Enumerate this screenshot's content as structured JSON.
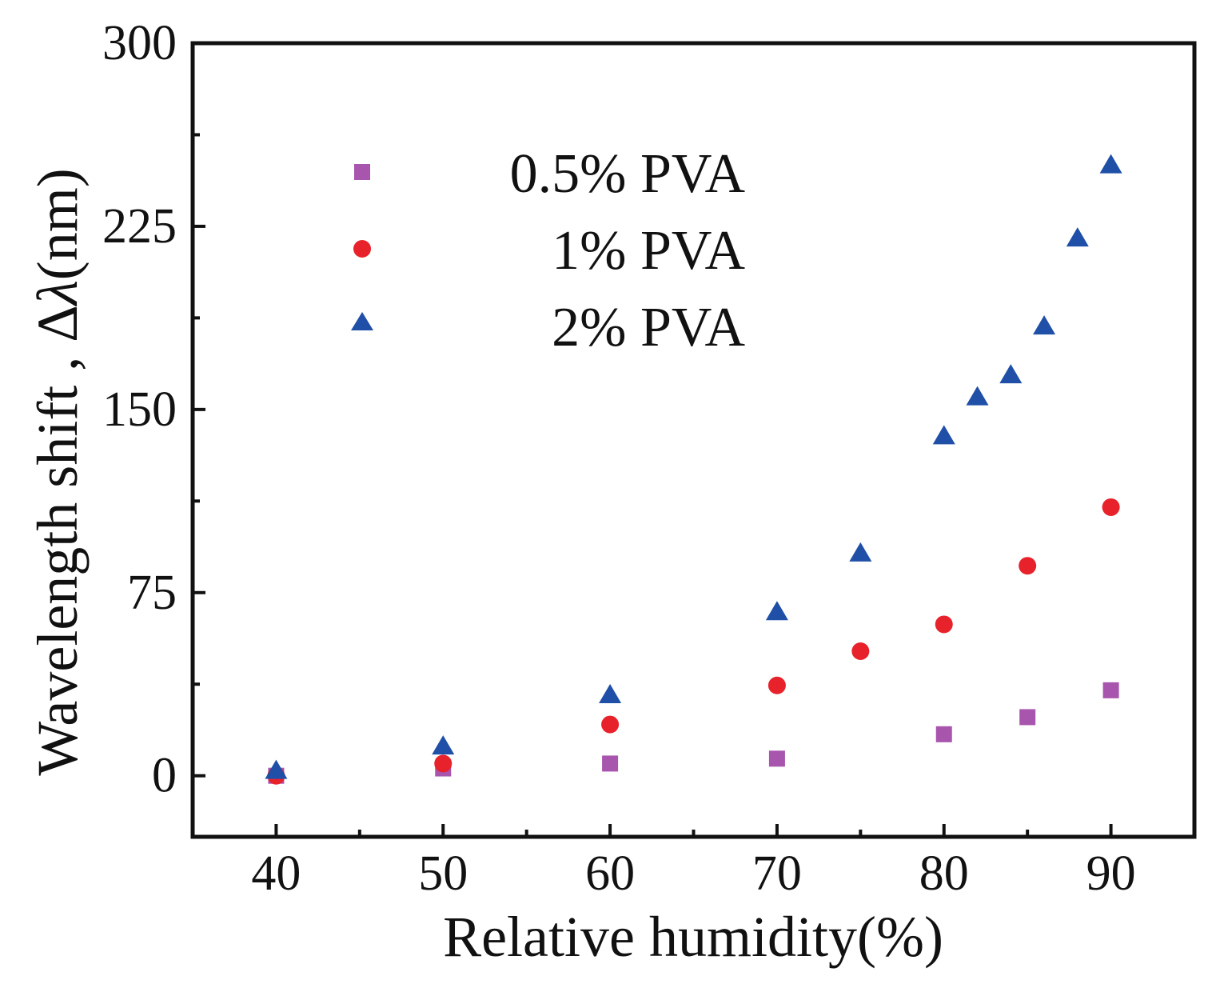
{
  "chart_data": {
    "type": "scatter",
    "title": "",
    "xlabel": "Relative humidity(%)",
    "ylabel_text": "Wavelength shift , Δ",
    "ylabel_symbol": "λ",
    "ylabel_unit": "(nm)",
    "xlim": [
      35,
      95
    ],
    "ylim": [
      -25,
      300
    ],
    "xticks": [
      40,
      50,
      60,
      70,
      80,
      90
    ],
    "yticks": [
      0,
      75,
      150,
      225,
      300
    ],
    "x_minor_ticks": [
      45,
      55,
      65,
      75,
      85
    ],
    "y_minor_ticks": [
      37.5,
      112.5,
      187.5,
      262.5
    ],
    "grid": false,
    "legend_position": "top-left",
    "series": [
      {
        "name": "0.5%  PVA",
        "marker": "square",
        "color": "#a855ad",
        "points": [
          [
            40,
            0
          ],
          [
            50,
            3
          ],
          [
            60,
            5
          ],
          [
            70,
            7
          ],
          [
            80,
            17
          ],
          [
            85,
            24
          ],
          [
            90,
            35
          ]
        ]
      },
      {
        "name": "1%  PVA",
        "marker": "circle",
        "color": "#e8222b",
        "points": [
          [
            40,
            0
          ],
          [
            50,
            5
          ],
          [
            60,
            21
          ],
          [
            70,
            37
          ],
          [
            75,
            51
          ],
          [
            80,
            62
          ],
          [
            85,
            86
          ],
          [
            90,
            110
          ]
        ]
      },
      {
        "name": "2%  PVA",
        "marker": "triangle",
        "color": "#1f4fa6",
        "points": [
          [
            40,
            2
          ],
          [
            50,
            12
          ],
          [
            60,
            33
          ],
          [
            70,
            67
          ],
          [
            75,
            91
          ],
          [
            80,
            139
          ],
          [
            82,
            155
          ],
          [
            84,
            164
          ],
          [
            86,
            184
          ],
          [
            88,
            220
          ],
          [
            90,
            250
          ]
        ]
      }
    ]
  }
}
